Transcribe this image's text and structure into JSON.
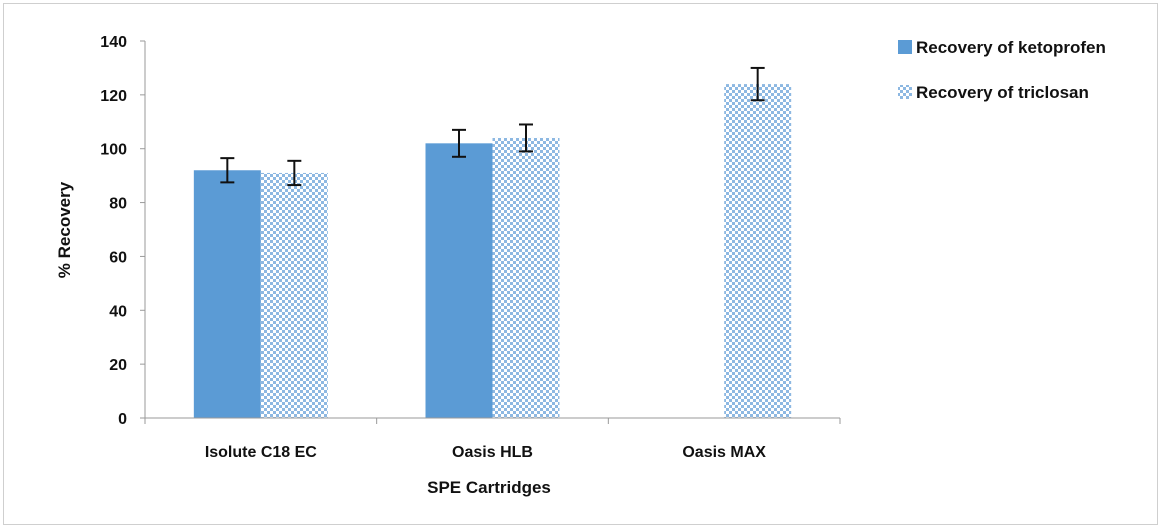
{
  "chart_data": {
    "type": "bar",
    "title": "",
    "xlabel": "SPE Cartridges",
    "ylabel": "% Recovery",
    "categories": [
      "Isolute C18 EC",
      "Oasis HLB",
      "Oasis MAX"
    ],
    "ylim": [
      0,
      140
    ],
    "yticks": [
      0,
      20,
      40,
      60,
      80,
      100,
      120,
      140
    ],
    "grid": false,
    "legend_position": "top-right",
    "series": [
      {
        "name": "Recovery of ketoprofen",
        "values": [
          92,
          102,
          null
        ],
        "errors": [
          4.5,
          5,
          null
        ],
        "color": "#5b9bd5",
        "pattern": "solid"
      },
      {
        "name": "Recovery of triclosan",
        "values": [
          91,
          104,
          124
        ],
        "errors": [
          4.5,
          5,
          6
        ],
        "color": "#8db8e2",
        "pattern": "checkered"
      }
    ]
  }
}
